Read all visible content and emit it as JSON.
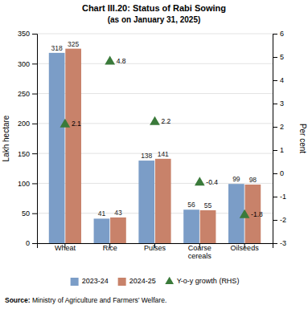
{
  "chart_data": {
    "type": "bar",
    "title": "Chart III.20: Status of Rabi Sowing",
    "subtitle": "(as on January 31, 2025)",
    "source": "Source: Ministry of Agriculture and Farmers’ Welfare.",
    "categories": [
      "Wheat",
      "Rice",
      "Pulses",
      "Coarse\ncereals",
      "Oilseeds"
    ],
    "series": [
      {
        "name": "2023-24",
        "color": "#7B9DC7",
        "values": [
          318,
          41,
          138,
          56,
          99
        ]
      },
      {
        "name": "2024-25",
        "color": "#C8826A",
        "values": [
          325,
          43,
          141,
          55,
          98
        ]
      },
      {
        "name": "Y-o-y growth (RHS)",
        "type": "scatter",
        "marker": "triangle",
        "axis": "y2",
        "color": "#3A7A3A",
        "values": [
          2.1,
          4.8,
          2.2,
          -0.4,
          -1.8
        ]
      }
    ],
    "ylabel": "Lakh hectare",
    "y2label": "Per cent",
    "ylim": [
      0,
      350
    ],
    "yticks": [
      0,
      50,
      100,
      150,
      200,
      250,
      300,
      350
    ],
    "y2lim": [
      -3,
      6
    ],
    "y2ticks": [
      -3,
      -2,
      -1,
      0,
      1,
      2,
      3,
      4,
      5,
      6
    ],
    "grid": true,
    "legend": "bottom",
    "data_labels": true
  }
}
